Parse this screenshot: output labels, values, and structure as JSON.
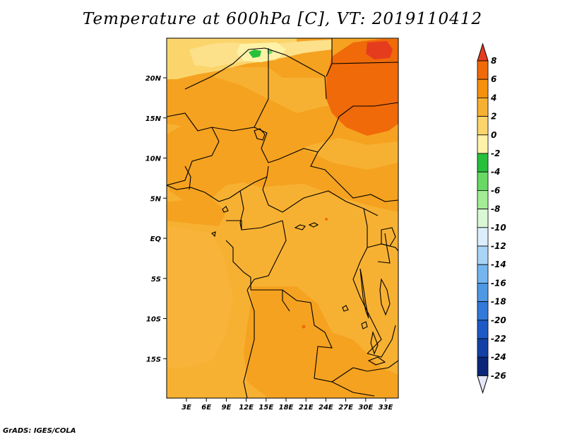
{
  "title": "Temperature at 600hPa [C], VT: 2019110412",
  "footer": "GrADS: IGES/COLA",
  "lat_ticks": [
    "20N",
    "15N",
    "10N",
    "5N",
    "EQ",
    "5S",
    "10S",
    "15S"
  ],
  "lon_ticks": [
    "3E",
    "6E",
    "9E",
    "12E",
    "15E",
    "18E",
    "21E",
    "24E",
    "27E",
    "30E",
    "33E"
  ],
  "colorbar": {
    "labels": [
      "8",
      "6",
      "4",
      "2",
      "0",
      "-2",
      "-4",
      "-6",
      "-8",
      "-10",
      "-12",
      "-14",
      "-16",
      "-18",
      "-20",
      "-22",
      "-24",
      "-26"
    ],
    "colors": [
      "#e63c1e",
      "#f06a0a",
      "#f5910d",
      "#f7b132",
      "#fbd56c",
      "#fef2a8",
      "#27c03c",
      "#67d964",
      "#a4ec96",
      "#d9f7d4",
      "#dceefb",
      "#a8d4f5",
      "#75b6ef",
      "#4f98e4",
      "#3279d9",
      "#1e5ac6",
      "#1440a6",
      "#0a2678",
      "#0a1450"
    ],
    "over_color": "#e63c1e",
    "under_color": "#e6e6fa"
  }
}
